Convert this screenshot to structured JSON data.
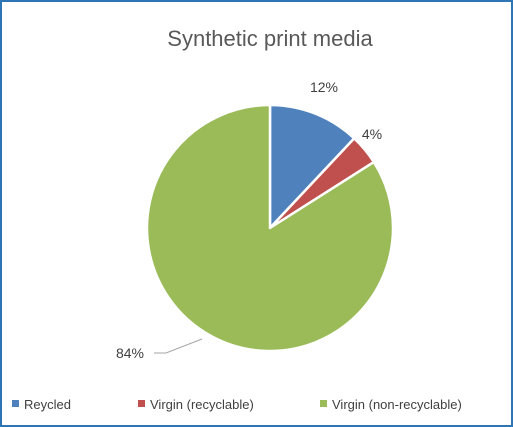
{
  "chart_data": {
    "type": "pie",
    "title": "Synthetic print media",
    "categories": [
      "Reycled",
      "Virgin (recyclable)",
      "Virgin (non-recyclable)"
    ],
    "values": [
      12,
      4,
      84
    ],
    "labels": [
      "12%",
      "4%",
      "84%"
    ],
    "colors": [
      "#4f81bd",
      "#c0504d",
      "#9bbb59"
    ],
    "legend_position": "bottom"
  }
}
